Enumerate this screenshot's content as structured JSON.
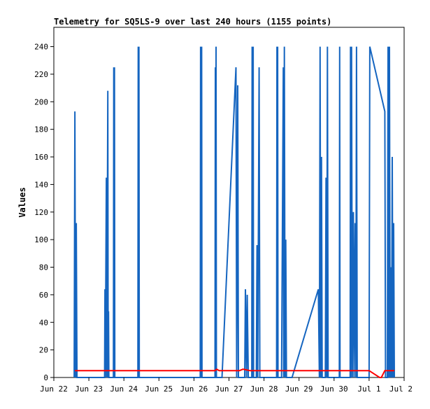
{
  "chart_data": {
    "type": "line",
    "title": "Telemetry for SQ5LS-9 over last 240 hours (1155 points)",
    "xlabel": "",
    "ylabel": "Values",
    "ylim": [
      0,
      254
    ],
    "xlim": [
      "Jun 22",
      "Jul 2"
    ],
    "x_ticks": [
      "Jun 22",
      "Jun 23",
      "Jun 24",
      "Jun 25",
      "Jun 26",
      "Jun 27",
      "Jun 28",
      "Jun 29",
      "Jun 30",
      "Jul 1",
      "Jul 2"
    ],
    "y_ticks": [
      0,
      20,
      40,
      60,
      80,
      100,
      120,
      140,
      160,
      180,
      200,
      220,
      240
    ],
    "grid": false,
    "legend": "none",
    "series": [
      {
        "color": "#1565c0",
        "points": [
          [
            0.58,
            0
          ],
          [
            0.6,
            193
          ],
          [
            0.62,
            0
          ],
          [
            0.64,
            112
          ],
          [
            0.66,
            0
          ],
          [
            1.45,
            0
          ],
          [
            1.46,
            64
          ],
          [
            1.47,
            0
          ],
          [
            1.5,
            145
          ],
          [
            1.51,
            0
          ],
          [
            1.54,
            208
          ],
          [
            1.55,
            0
          ],
          [
            1.56,
            48
          ],
          [
            1.57,
            0
          ],
          [
            1.7,
            0
          ],
          [
            1.71,
            225
          ],
          [
            1.72,
            0
          ],
          [
            1.73,
            225
          ],
          [
            1.74,
            0
          ],
          [
            2.4,
            0
          ],
          [
            2.41,
            240
          ],
          [
            2.42,
            0
          ],
          [
            2.43,
            240
          ],
          [
            2.44,
            0
          ],
          [
            4.18,
            0
          ],
          [
            4.19,
            240
          ],
          [
            4.2,
            0
          ],
          [
            4.22,
            240
          ],
          [
            4.23,
            0
          ],
          [
            4.6,
            0
          ],
          [
            4.61,
            225
          ],
          [
            4.62,
            0
          ],
          [
            4.63,
            240
          ],
          [
            4.64,
            0
          ],
          [
            4.8,
            0
          ],
          [
            5.2,
            225
          ],
          [
            5.22,
            0
          ],
          [
            5.25,
            212
          ],
          [
            5.27,
            0
          ],
          [
            5.45,
            0
          ],
          [
            5.47,
            64
          ],
          [
            5.5,
            0
          ],
          [
            5.52,
            60
          ],
          [
            5.55,
            0
          ],
          [
            5.65,
            0
          ],
          [
            5.66,
            240
          ],
          [
            5.67,
            0
          ],
          [
            5.69,
            240
          ],
          [
            5.7,
            0
          ],
          [
            5.78,
            0
          ],
          [
            5.8,
            96
          ],
          [
            5.82,
            0
          ],
          [
            5.86,
            225
          ],
          [
            5.88,
            0
          ],
          [
            6.36,
            0
          ],
          [
            6.37,
            240
          ],
          [
            6.38,
            0
          ],
          [
            6.39,
            240
          ],
          [
            6.4,
            0
          ],
          [
            6.5,
            0
          ],
          [
            6.55,
            225
          ],
          [
            6.56,
            0
          ],
          [
            6.58,
            240
          ],
          [
            6.6,
            0
          ],
          [
            6.62,
            100
          ],
          [
            6.64,
            0
          ],
          [
            6.8,
            0
          ],
          [
            7.55,
            64
          ],
          [
            7.58,
            0
          ],
          [
            7.6,
            240
          ],
          [
            7.62,
            0
          ],
          [
            7.64,
            160
          ],
          [
            7.66,
            0
          ],
          [
            7.75,
            0
          ],
          [
            7.77,
            145
          ],
          [
            7.79,
            0
          ],
          [
            7.81,
            240
          ],
          [
            7.83,
            0
          ],
          [
            8.15,
            0
          ],
          [
            8.16,
            240
          ],
          [
            8.17,
            0
          ],
          [
            8.46,
            0
          ],
          [
            8.47,
            240
          ],
          [
            8.48,
            0
          ],
          [
            8.5,
            240
          ],
          [
            8.52,
            0
          ],
          [
            8.55,
            120
          ],
          [
            8.57,
            0
          ],
          [
            8.6,
            112
          ],
          [
            8.62,
            0
          ],
          [
            8.64,
            240
          ],
          [
            8.66,
            0
          ],
          [
            9.0,
            0
          ],
          [
            9.02,
            240
          ],
          [
            9.45,
            193
          ],
          [
            9.47,
            0
          ],
          [
            9.52,
            0
          ],
          [
            9.54,
            240
          ],
          [
            9.56,
            0
          ],
          [
            9.58,
            240
          ],
          [
            9.6,
            0
          ],
          [
            9.62,
            80
          ],
          [
            9.64,
            0
          ],
          [
            9.66,
            160
          ],
          [
            9.68,
            0
          ],
          [
            9.7,
            112
          ],
          [
            9.72,
            0
          ]
        ]
      },
      {
        "color": "#ff0000",
        "points": [
          [
            0.6,
            5
          ],
          [
            4.6,
            5
          ],
          [
            4.65,
            6
          ],
          [
            4.72,
            5
          ],
          [
            5.3,
            5
          ],
          [
            5.4,
            6
          ],
          [
            5.6,
            5
          ],
          [
            9.0,
            5
          ],
          [
            9.3,
            0
          ],
          [
            9.35,
            0
          ],
          [
            9.45,
            5
          ],
          [
            9.72,
            5
          ]
        ]
      }
    ]
  }
}
